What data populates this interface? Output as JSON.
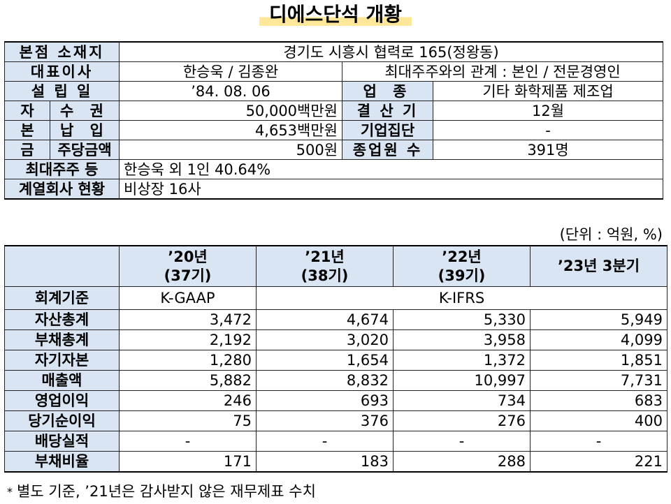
{
  "title": "디에스단석 개황",
  "overview": {
    "location_label": "본점 소재지",
    "location_value": "경기도 시흥시 협력로 165(정왕동)",
    "ceo_label": "대표이사",
    "ceo_value": "한승욱 / 김종완",
    "relation_value": "최대주주와의 관계 : 본인 / 전문경영인",
    "founded_label": "설 립 일",
    "founded_value": "’84. 08. 06",
    "industry_label": "업 종",
    "industry_value": "기타 화학제품 제조업",
    "capital_label_1": "자",
    "capital_label_2": "본",
    "capital_label_3": "금",
    "authorized_label": "수 권",
    "authorized_value": "50,000백만원",
    "paidin_label": "납 입",
    "paidin_value": "4,653백만원",
    "par_label": "주당금액",
    "par_value": "500원",
    "fiscal_label": "결 산 기",
    "fiscal_value": "12월",
    "group_label": "기업집단",
    "group_value": "-",
    "employees_label": "종업원 수",
    "employees_value": "391명",
    "shareholder_label": "최대주주 등",
    "shareholder_value": "한승욱 외 1인 40.64%",
    "affiliates_label": "계열회사 현황",
    "affiliates_value": "비상장 16사"
  },
  "unit_note": "(단위 : 억원, %)",
  "financials": {
    "years": [
      {
        "line1": "’20년",
        "line2": "(37기)"
      },
      {
        "line1": "’21년",
        "line2": "(38기)"
      },
      {
        "line1": "’22년",
        "line2": "(39기)"
      },
      {
        "line1": "’23년 3분기",
        "line2": ""
      }
    ],
    "standard_label": "회계기준",
    "standard_gaap": "K-GAAP",
    "standard_ifrs": "K-IFRS",
    "rows": [
      {
        "label": "자산총계",
        "values": [
          "3,472",
          "4,674",
          "5,330",
          "5,949"
        ]
      },
      {
        "label": "부채총계",
        "values": [
          "2,192",
          "3,020",
          "3,958",
          "4,099"
        ]
      },
      {
        "label": "자기자본",
        "values": [
          "1,280",
          "1,654",
          "1,372",
          "1,851"
        ]
      },
      {
        "label": "매출액",
        "values": [
          "5,882",
          "8,832",
          "10,997",
          "7,731"
        ]
      },
      {
        "label": "영업이익",
        "values": [
          "246",
          "693",
          "734",
          "683"
        ]
      },
      {
        "label": "당기순이익",
        "values": [
          "75",
          "376",
          "276",
          "400"
        ]
      },
      {
        "label": "배당실적",
        "values": [
          "-",
          "-",
          "-",
          "-"
        ]
      },
      {
        "label": "부채비율",
        "values": [
          "171",
          "183",
          "288",
          "221"
        ]
      }
    ]
  },
  "footnote_mark": "*",
  "footnote": "별도 기준, ’21년은 감사받지 않은 재무제표 수치"
}
